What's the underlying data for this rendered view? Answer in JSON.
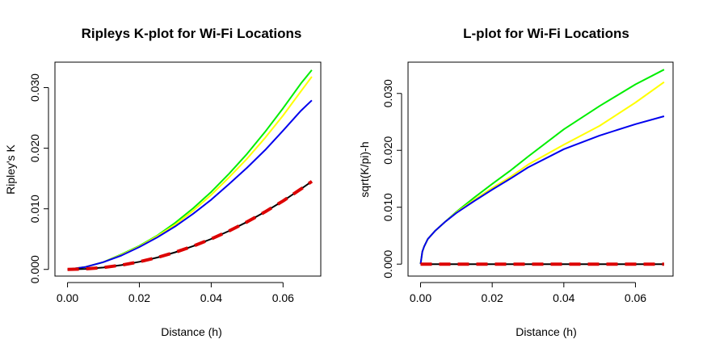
{
  "chart_data": [
    {
      "type": "line",
      "title": "Ripleys K-plot for Wi-Fi Locations",
      "xlabel": "Distance (h)",
      "ylabel": "Ripley's K",
      "xlim": [
        -0.0035,
        0.0705
      ],
      "ylim": [
        -0.0011,
        0.0342
      ],
      "xticks": [
        0.0,
        0.02,
        0.04,
        0.06
      ],
      "xtick_labels": [
        "0.00",
        "0.02",
        "0.04",
        "0.06"
      ],
      "yticks": [
        0.0,
        0.01,
        0.02,
        0.03
      ],
      "ytick_labels": [
        "0.000",
        "0.010",
        "0.020",
        "0.030"
      ],
      "grid": false,
      "legend": "none",
      "series": [
        {
          "color": "#00ee00",
          "dash": "solid",
          "x": [
            0,
            0.005,
            0.01,
            0.015,
            0.02,
            0.025,
            0.03,
            0.035,
            0.04,
            0.045,
            0.05,
            0.055,
            0.06,
            0.065,
            0.068
          ],
          "y": [
            0,
            0.0004,
            0.0012,
            0.0025,
            0.0039,
            0.0056,
            0.0077,
            0.0101,
            0.0128,
            0.0158,
            0.0191,
            0.0227,
            0.0266,
            0.0307,
            0.0329
          ]
        },
        {
          "color": "#ffff00",
          "dash": "solid",
          "x": [
            0,
            0.005,
            0.01,
            0.015,
            0.02,
            0.025,
            0.03,
            0.035,
            0.04,
            0.045,
            0.05,
            0.055,
            0.06,
            0.065,
            0.068
          ],
          "y": [
            0,
            0.0004,
            0.0012,
            0.0024,
            0.0038,
            0.0055,
            0.0074,
            0.0097,
            0.0123,
            0.0152,
            0.0183,
            0.0217,
            0.0254,
            0.0294,
            0.0318
          ]
        },
        {
          "color": "#0000ee",
          "dash": "solid",
          "x": [
            0,
            0.005,
            0.01,
            0.015,
            0.02,
            0.025,
            0.03,
            0.035,
            0.04,
            0.045,
            0.05,
            0.055,
            0.06,
            0.065,
            0.068
          ],
          "y": [
            0,
            0.0004,
            0.0012,
            0.0023,
            0.0037,
            0.0053,
            0.0071,
            0.0092,
            0.0115,
            0.0141,
            0.0168,
            0.0197,
            0.0229,
            0.0262,
            0.0279
          ]
        },
        {
          "color": "#000000",
          "dash": "solid",
          "x": [
            0,
            0.005,
            0.01,
            0.015,
            0.02,
            0.025,
            0.03,
            0.035,
            0.04,
            0.045,
            0.05,
            0.055,
            0.06,
            0.065,
            0.068
          ],
          "y": [
            0,
            8e-05,
            0.00031,
            0.00071,
            0.00126,
            0.00196,
            0.00283,
            0.00385,
            0.00503,
            0.00636,
            0.00785,
            0.0095,
            0.0113,
            0.01327,
            0.01453
          ]
        },
        {
          "color": "#dd0000",
          "dash": "dashed",
          "x": [
            0,
            0.005,
            0.01,
            0.015,
            0.02,
            0.025,
            0.03,
            0.035,
            0.04,
            0.045,
            0.05,
            0.055,
            0.06,
            0.065,
            0.068
          ],
          "y": [
            0,
            8e-05,
            0.00031,
            0.00071,
            0.00126,
            0.00196,
            0.00283,
            0.00385,
            0.00503,
            0.00636,
            0.00785,
            0.0095,
            0.0113,
            0.01327,
            0.01453
          ]
        }
      ]
    },
    {
      "type": "line",
      "title": "L-plot for Wi-Fi Locations",
      "xlabel": "Distance (h)",
      "ylabel": "sqrt(K/pi)-h",
      "xlim": [
        -0.0035,
        0.0705
      ],
      "ylim": [
        -0.0021,
        0.0355
      ],
      "xticks": [
        0.0,
        0.02,
        0.04,
        0.06
      ],
      "xtick_labels": [
        "0.00",
        "0.02",
        "0.04",
        "0.06"
      ],
      "yticks": [
        0.0,
        0.01,
        0.02,
        0.03
      ],
      "ytick_labels": [
        "0.000",
        "0.010",
        "0.020",
        "0.030"
      ],
      "grid": false,
      "legend": "none",
      "series": [
        {
          "color": "#00ee00",
          "dash": "solid",
          "x": [
            0,
            0.0005,
            0.001,
            0.002,
            0.004,
            0.007,
            0.01,
            0.015,
            0.02,
            0.025,
            0.03,
            0.04,
            0.05,
            0.06,
            0.068
          ],
          "y": [
            0,
            0.0022,
            0.0031,
            0.0044,
            0.0058,
            0.0075,
            0.0092,
            0.0117,
            0.0141,
            0.0164,
            0.0189,
            0.0237,
            0.0278,
            0.0316,
            0.0342
          ]
        },
        {
          "color": "#ffff00",
          "dash": "solid",
          "x": [
            0,
            0.0005,
            0.001,
            0.002,
            0.004,
            0.007,
            0.01,
            0.015,
            0.02,
            0.025,
            0.03,
            0.04,
            0.05,
            0.06,
            0.068
          ],
          "y": [
            0,
            0.0022,
            0.0031,
            0.0044,
            0.0058,
            0.0075,
            0.0091,
            0.0113,
            0.0134,
            0.0153,
            0.0175,
            0.021,
            0.0243,
            0.0284,
            0.032
          ]
        },
        {
          "color": "#0000ee",
          "dash": "solid",
          "x": [
            0,
            0.0005,
            0.001,
            0.002,
            0.004,
            0.007,
            0.01,
            0.015,
            0.02,
            0.025,
            0.03,
            0.04,
            0.05,
            0.06,
            0.068
          ],
          "y": [
            0,
            0.0022,
            0.0031,
            0.0044,
            0.0058,
            0.0075,
            0.009,
            0.0111,
            0.0131,
            0.015,
            0.017,
            0.0202,
            0.0226,
            0.0246,
            0.026
          ]
        },
        {
          "color": "#000000",
          "dash": "solid",
          "x": [
            0,
            0.068
          ],
          "y": [
            0,
            0
          ]
        },
        {
          "color": "#dd0000",
          "dash": "dashed",
          "x": [
            0,
            0.068
          ],
          "y": [
            0,
            0
          ]
        }
      ]
    }
  ]
}
